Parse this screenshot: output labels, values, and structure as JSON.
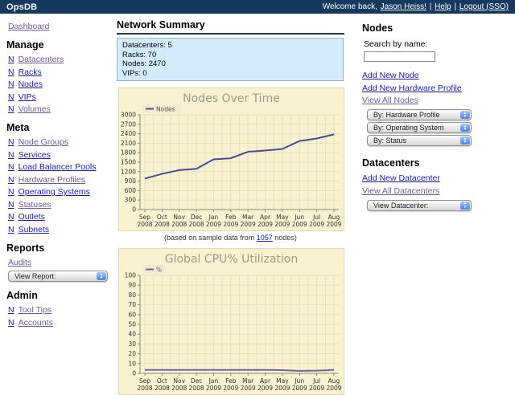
{
  "header": {
    "app_title": "OpsDB",
    "welcome_text": "Welcome back,",
    "user_link": "Jason Heiss!",
    "divider": "|",
    "help_link": "Help",
    "logout_link": "Logout (SSO)"
  },
  "sidebar": {
    "dashboard_link": "Dashboard",
    "manage": {
      "title": "Manage",
      "items": [
        {
          "n": "N",
          "label": "Datacenters"
        },
        {
          "n": "N",
          "label": "Racks"
        },
        {
          "n": "N",
          "label": "Nodes"
        },
        {
          "n": "N",
          "label": "VIPs"
        },
        {
          "n": "N",
          "label": "Volumes"
        }
      ]
    },
    "meta": {
      "title": "Meta",
      "items": [
        {
          "n": "N",
          "label": "Node Groups"
        },
        {
          "n": "N",
          "label": "Services"
        },
        {
          "n": "N",
          "label": "Load Balancer Pools"
        },
        {
          "n": "N",
          "label": "Hardware Profiles"
        },
        {
          "n": "N",
          "label": "Operating Systems"
        },
        {
          "n": "N",
          "label": "Statuses"
        },
        {
          "n": "N",
          "label": "Outlets"
        },
        {
          "n": "N",
          "label": "Subnets"
        }
      ]
    },
    "reports": {
      "title": "Reports",
      "audits_link": "Audits",
      "view_report_select": "View Report:"
    },
    "admin": {
      "title": "Admin",
      "items": [
        {
          "n": "N",
          "label": "Tool Tips"
        },
        {
          "n": "N",
          "label": "Accounts"
        }
      ]
    }
  },
  "main": {
    "network_summary": {
      "title": "Network Summary",
      "lines": [
        "Datacenters: 5",
        "Racks: 70",
        "Nodes: 2470",
        "VIPs: 0"
      ]
    },
    "caption": {
      "prefix": "(based on sample data from",
      "link": "1057",
      "suffix": "nodes)"
    }
  },
  "right": {
    "nodes": {
      "title": "Nodes",
      "search_label": "Search by name:",
      "search_value": "",
      "links": [
        "Add New Node",
        "Add New Hardware Profile",
        "View All Nodes"
      ],
      "selects": [
        "By: Hardware Profile",
        "By: Operating System",
        "By: Status"
      ]
    },
    "datacenters": {
      "title": "Datacenters",
      "links": [
        "Add New Datacenter",
        "View All Datacenters"
      ],
      "selects": [
        "View Datacenter:"
      ]
    }
  },
  "colors": {
    "header_bg": "#15395f",
    "link": "#1a1acd",
    "link_visited": "#6c5b9e",
    "heading_underline": "#1a3a64",
    "summary_box_bg": "#d3ecfb",
    "summary_box_border": "#9bb0bd",
    "chart_bg": "#f8f2d1",
    "chart_border": "#e3d9ab",
    "chart_title": "#9f998b",
    "chart_grid": "#e9e0b4",
    "chart_axis": "#8c8674"
  },
  "chart_data": [
    {
      "type": "line",
      "title": "Nodes Over Time",
      "legend": [
        "Nodes"
      ],
      "categories": [
        "Sep 2008",
        "Oct 2008",
        "Nov 2008",
        "Dec 2008",
        "Jan 2009",
        "Feb 2009",
        "Mar 2009",
        "Apr 2009",
        "May 2009",
        "Jun 2009",
        "Jul 2009",
        "Aug 2009"
      ],
      "values": [
        980,
        1130,
        1250,
        1290,
        1590,
        1625,
        1830,
        1870,
        1920,
        2170,
        2250,
        2380
      ],
      "ylim": [
        0,
        3000
      ],
      "ytick": 300,
      "grid": true,
      "legend_position": "top-left",
      "line_color": "#4a4a99",
      "xlabel": "",
      "ylabel": ""
    },
    {
      "type": "line",
      "title": "Global CPU% Utilization",
      "legend": [
        "%"
      ],
      "categories": [
        "Sep 2008",
        "Oct 2008",
        "Nov 2008",
        "Dec 2008",
        "Jan 2009",
        "Feb 2009",
        "Mar 2009",
        "Apr 2009",
        "May 2009",
        "Jun 2009",
        "Jul 2009",
        "Aug 2009"
      ],
      "values": [
        3.5,
        3.5,
        3.5,
        3.5,
        3.5,
        3.5,
        3.5,
        3.5,
        3.3,
        2.5,
        2.8,
        3.5
      ],
      "ylim": [
        0,
        100
      ],
      "ytick": 10,
      "grid": true,
      "legend_position": "top-left",
      "line_color": "#6a6aa4",
      "xlabel": "",
      "ylabel": "",
      "note": "bottom of chart cut off by viewport"
    }
  ]
}
